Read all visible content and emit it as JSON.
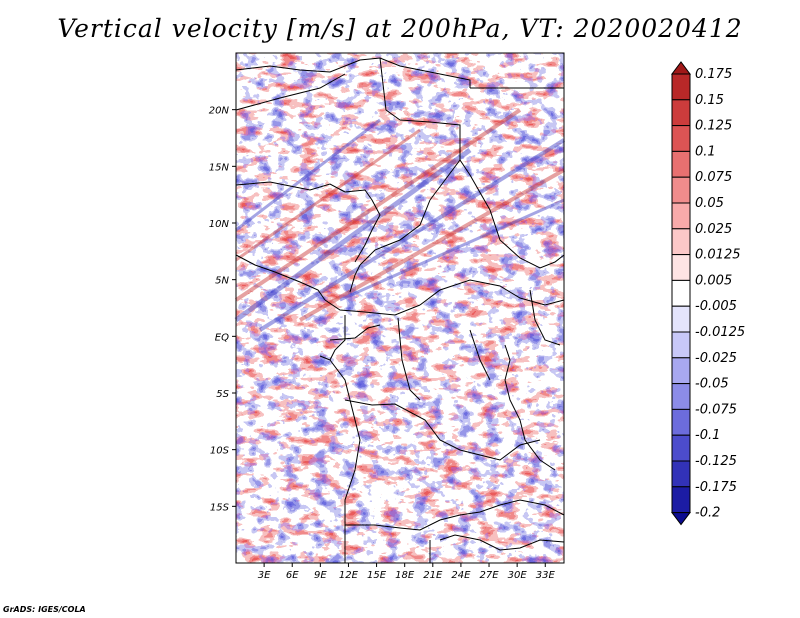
{
  "title": "Vertical velocity [m/s] at 200hPa, VT: 2020020412",
  "credit": "GrADS: IGES/COLA",
  "map": {
    "lon_range": [
      0,
      35
    ],
    "lat_range": [
      -20,
      25
    ],
    "x_ticks": [
      "3E",
      "6E",
      "9E",
      "12E",
      "15E",
      "18E",
      "21E",
      "24E",
      "27E",
      "30E",
      "33E"
    ],
    "y_ticks": [
      "20N",
      "15N",
      "10N",
      "5N",
      "EQ",
      "5S",
      "10S",
      "15S"
    ]
  },
  "colorbar": {
    "labels": [
      "0.175",
      "0.15",
      "0.125",
      "0.1",
      "0.075",
      "0.05",
      "0.025",
      "0.0125",
      "0.005",
      "-0.005",
      "-0.0125",
      "-0.025",
      "-0.05",
      "-0.075",
      "-0.1",
      "-0.125",
      "-0.175",
      "-0.2"
    ],
    "colors": [
      "#a01818",
      "#b82828",
      "#cc3c3c",
      "#dc5454",
      "#e87070",
      "#f08c8c",
      "#f8aaaa",
      "#fcc8c8",
      "#fee4e4",
      "#ffffff",
      "#e4e4fc",
      "#c8c8f8",
      "#a8a8f0",
      "#8c8ce8",
      "#6c6cdc",
      "#4c4ccc",
      "#3232b8",
      "#1c1ca4",
      "#0c0c90"
    ]
  }
}
